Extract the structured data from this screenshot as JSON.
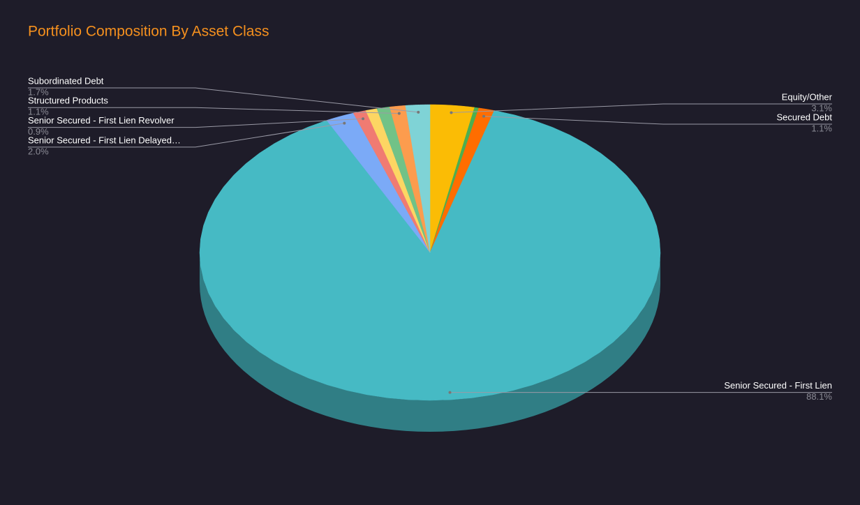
{
  "chart_data": {
    "type": "pie3d",
    "title": "Portfolio Composition By Asset Class",
    "categories": [
      "Equity/Other",
      null,
      "Secured Debt",
      "Senior Secured - First Lien",
      "Senior Secured - First Lien Delayed…",
      "Senior Secured - First Lien Revolver",
      null,
      null,
      "Structured Products",
      "Subordinated Debt"
    ],
    "values": [
      3.1,
      0.3,
      1.1,
      88.1,
      2.0,
      0.9,
      0.8,
      0.9,
      1.1,
      1.7
    ],
    "value_labels": [
      "3.1%",
      null,
      "1.1%",
      "88.1%",
      "2.0%",
      "0.9%",
      null,
      null,
      "1.1%",
      "1.7%"
    ],
    "colors": [
      "#fbbc05",
      "#4caf50",
      "#ff6d00",
      "#46bac4",
      "#7baaf7",
      "#f07b72",
      "#fdd663",
      "#71c287",
      "#fc9c4e",
      "#7fd3d6"
    ]
  }
}
